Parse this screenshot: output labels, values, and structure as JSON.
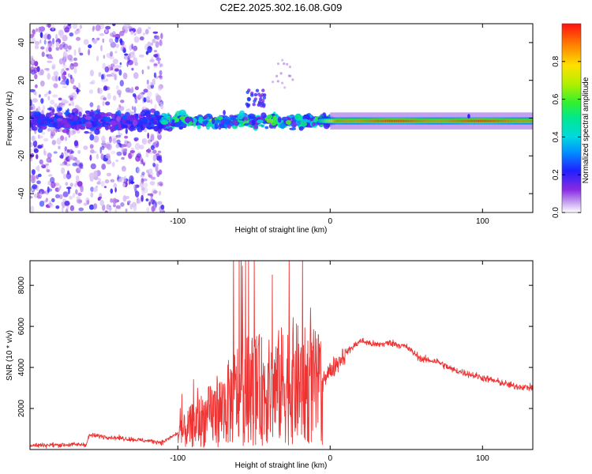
{
  "title": "C2E2.2025.302.16.08.G09",
  "chart_data": [
    {
      "type": "heatmap",
      "xlabel": "Height of straight line (km)",
      "ylabel": "Frequency (Hz)",
      "xlim": [
        -197,
        133
      ],
      "ylim": [
        -50,
        50
      ],
      "xticks": [
        -100,
        0,
        100
      ],
      "yticks": [
        -40,
        -20,
        0,
        20,
        40
      ],
      "colorbar": {
        "label": "Normalized spectral amplitude",
        "range": [
          0,
          1
        ],
        "ticks": [
          "0.0",
          "0.2",
          "0.4",
          "0.6",
          "0.8"
        ],
        "colors": [
          "#ffffff",
          "#c8a8f0",
          "#8a2be2",
          "#4b0aff",
          "#0050ff",
          "#00c8ff",
          "#00e890",
          "#30f030",
          "#b0f000",
          "#ffe800",
          "#ff9000",
          "#ff2000"
        ]
      },
      "description_of_signal": {
        "ridge_frequency_hz": -1.5,
        "noisy_region_end_km": -110,
        "strong_tone_start_km": 0
      }
    },
    {
      "type": "line",
      "xlabel": "Height of straight line (km)",
      "ylabel": "SNR (10 * v/v)",
      "xlim": [
        -197,
        133
      ],
      "ylim": [
        0,
        9200
      ],
      "xticks": [
        -100,
        0,
        100
      ],
      "yticks": [
        2000,
        4000,
        6000,
        8000
      ],
      "color": "#ee3333",
      "series": [
        {
          "name": "SNR",
          "envelope_x": [
            -197,
            -160,
            -158,
            -110,
            -100,
            -90,
            -70,
            -60,
            -50,
            -40,
            -30,
            -25,
            -20,
            -10,
            -5,
            0,
            10,
            20,
            30,
            40,
            50,
            60,
            70,
            80,
            90,
            100,
            110,
            120,
            133
          ],
          "envelope_y": [
            200,
            250,
            700,
            350,
            800,
            1500,
            2500,
            3500,
            3700,
            3500,
            4000,
            4200,
            3900,
            3800,
            3500,
            3800,
            4700,
            5300,
            5100,
            5200,
            5000,
            4400,
            4300,
            3900,
            3700,
            3500,
            3300,
            3100,
            3000
          ]
        }
      ]
    }
  ]
}
